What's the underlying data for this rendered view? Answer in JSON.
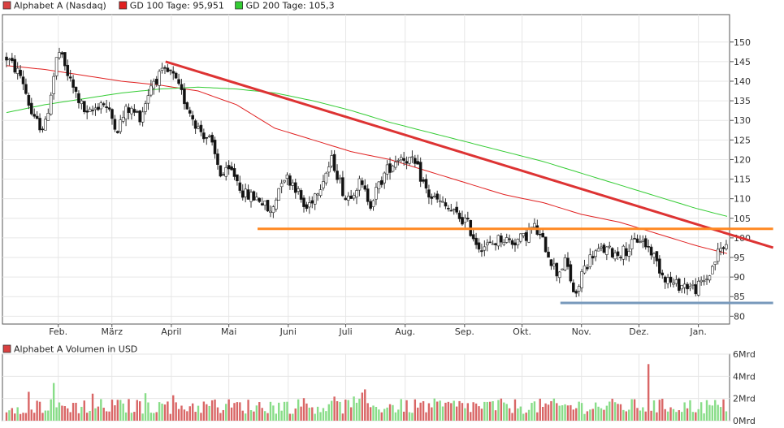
{
  "chart_data": [
    {
      "type": "line",
      "subtype": "candlestick",
      "legend": [
        {
          "label": "Alphabet A (Nasdaq)",
          "color": "#d94040"
        },
        {
          "label": "GD 100 Tage: 95,951",
          "color": "#e02020"
        },
        {
          "label": "GD 200 Tage: 105,3",
          "color": "#33cc33"
        }
      ],
      "legend_position": "top-left",
      "ylim": [
        78,
        157
      ],
      "y_ticks": [
        80,
        85,
        90,
        95,
        100,
        105,
        110,
        115,
        120,
        125,
        130,
        135,
        140,
        145,
        150
      ],
      "y_axis_side": "right",
      "xlim": [
        0,
        365
      ],
      "x_ticks": [
        {
          "label": "Feb.",
          "day": 27
        },
        {
          "label": "März",
          "day": 55
        },
        {
          "label": "April",
          "day": 86
        },
        {
          "label": "Mai",
          "day": 116
        },
        {
          "label": "Juni",
          "day": 147
        },
        {
          "label": "Juli",
          "day": 177
        },
        {
          "label": "Aug.",
          "day": 208
        },
        {
          "label": "Sep.",
          "day": 239
        },
        {
          "label": "Okt.",
          "day": 269
        },
        {
          "label": "Nov.",
          "day": 300
        },
        {
          "label": "Dez.",
          "day": 330
        },
        {
          "label": "Jan.",
          "day": 361
        }
      ],
      "grid": true,
      "colors": {
        "up": "#2e9e2e",
        "down": "#c42a2a",
        "grid": "#e6e6e6",
        "axis": "#555555",
        "tick_text": "#333333"
      },
      "price_points": [
        [
          0,
          146
        ],
        [
          8,
          141
        ],
        [
          14,
          130
        ],
        [
          20,
          128
        ],
        [
          27,
          148
        ],
        [
          34,
          139
        ],
        [
          42,
          131
        ],
        [
          50,
          135
        ],
        [
          58,
          128
        ],
        [
          63,
          133
        ],
        [
          70,
          131
        ],
        [
          76,
          140
        ],
        [
          82,
          142
        ],
        [
          86,
          142
        ],
        [
          92,
          136
        ],
        [
          100,
          128
        ],
        [
          106,
          125
        ],
        [
          112,
          116
        ],
        [
          118,
          117
        ],
        [
          124,
          111
        ],
        [
          132,
          110
        ],
        [
          138,
          106
        ],
        [
          144,
          116
        ],
        [
          150,
          114
        ],
        [
          156,
          107
        ],
        [
          164,
          114
        ],
        [
          170,
          120
        ],
        [
          177,
          110
        ],
        [
          184,
          114
        ],
        [
          190,
          109
        ],
        [
          198,
          117
        ],
        [
          205,
          121
        ],
        [
          210,
          120
        ],
        [
          214,
          118
        ],
        [
          220,
          111
        ],
        [
          226,
          109
        ],
        [
          234,
          106
        ],
        [
          240,
          104
        ],
        [
          246,
          98
        ],
        [
          252,
          98
        ],
        [
          258,
          100
        ],
        [
          264,
          99
        ],
        [
          270,
          100
        ],
        [
          275,
          103
        ],
        [
          281,
          98
        ],
        [
          287,
          91
        ],
        [
          292,
          94
        ],
        [
          297,
          84
        ],
        [
          300,
          91
        ],
        [
          306,
          96
        ],
        [
          312,
          97
        ],
        [
          318,
          96
        ],
        [
          324,
          97
        ],
        [
          330,
          100
        ],
        [
          336,
          97
        ],
        [
          342,
          91
        ],
        [
          348,
          88
        ],
        [
          354,
          88
        ],
        [
          360,
          87
        ],
        [
          366,
          90
        ],
        [
          372,
          97
        ],
        [
          376,
          98
        ]
      ],
      "series": [
        {
          "name": "GD 100 Tage",
          "color": "#e02020",
          "x": [
            0,
            20,
            40,
            60,
            80,
            100,
            120,
            140,
            160,
            180,
            200,
            220,
            240,
            260,
            280,
            300,
            320,
            340,
            360,
            376
          ],
          "values": [
            144,
            143,
            141.5,
            140,
            139,
            137.5,
            134,
            128,
            125,
            122,
            120,
            117,
            114,
            111,
            109,
            106,
            104,
            101,
            98,
            96
          ]
        },
        {
          "name": "GD 200 Tage",
          "color": "#33cc33",
          "x": [
            0,
            20,
            40,
            60,
            80,
            100,
            120,
            140,
            160,
            180,
            200,
            220,
            240,
            260,
            280,
            300,
            320,
            340,
            360,
            376
          ],
          "values": [
            132,
            134,
            135.5,
            137,
            138,
            138.5,
            138,
            137,
            135,
            132.5,
            129.5,
            127,
            124.5,
            122,
            119.5,
            116.5,
            113.5,
            110.5,
            107.5,
            105.5
          ]
        }
      ],
      "annotation_lines": [
        {
          "name": "downtrend-line",
          "color": "#dd3333",
          "from": [
            83,
            145
          ],
          "to": [
            400,
            97.5
          ]
        },
        {
          "name": "resistance-line",
          "color": "#ff8822",
          "from": [
            131,
            102.3
          ],
          "to": [
            400,
            102.3
          ]
        },
        {
          "name": "support-line",
          "color": "#7799bb",
          "from": [
            289,
            83.4
          ],
          "to": [
            400,
            83.4
          ]
        }
      ]
    },
    {
      "type": "bar",
      "title": "Alphabet A Volumen in USD",
      "legend_color": "#d94040",
      "ylim": [
        0,
        6
      ],
      "y_ticks": [
        "0Mrd",
        "2Mrd",
        "4Mrd",
        "6Mrd"
      ],
      "y_tick_values": [
        0,
        2,
        4,
        6
      ],
      "spike": {
        "day": 335,
        "value": 5.1
      },
      "typical_range": [
        0.6,
        2.0
      ],
      "colors": {
        "up": "#88dd88",
        "down": "#d96666"
      }
    }
  ]
}
